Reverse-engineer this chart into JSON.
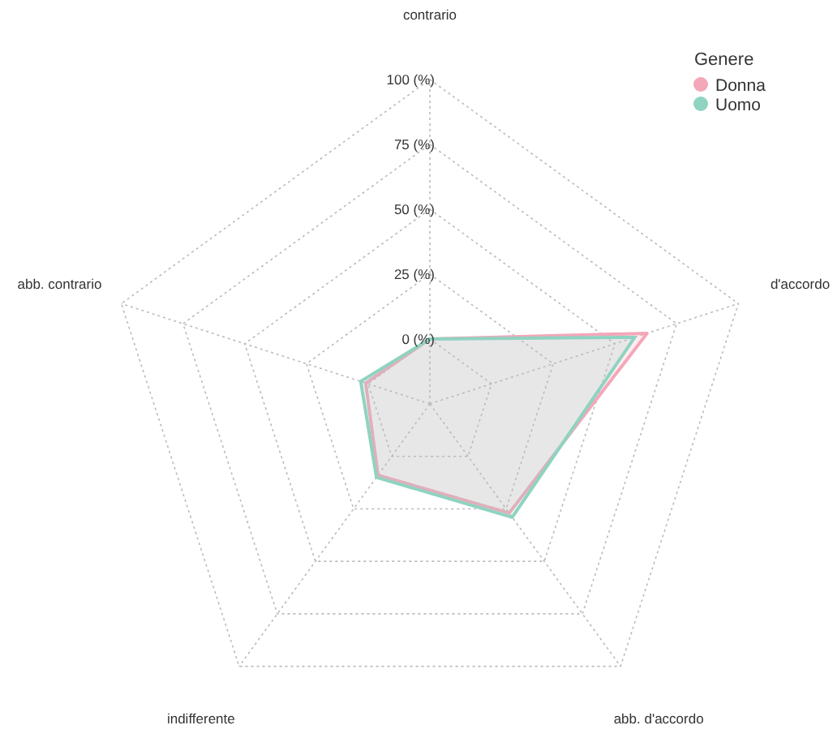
{
  "chart_data": {
    "type": "radar",
    "categories": [
      "contrario",
      "d'accordo",
      "abb. d'accordo",
      "indifferente",
      "abb. contrario"
    ],
    "series": [
      {
        "name": "Donna",
        "color": "#f4a7b9",
        "values": [
          0,
          63,
          27,
          9,
          1
        ]
      },
      {
        "name": "Uomo",
        "color": "#8fd3c1",
        "values": [
          0,
          58,
          29,
          10,
          3
        ]
      }
    ],
    "ylim": [
      -25,
      100
    ],
    "yticks": [
      {
        "value": 0,
        "label": "0 (%)"
      },
      {
        "value": 25,
        "label": "25 (%)"
      },
      {
        "value": 50,
        "label": "50 (%)"
      },
      {
        "value": 75,
        "label": "75 (%)"
      },
      {
        "value": 100,
        "label": "100 (%)"
      }
    ],
    "grid": true,
    "legend": "top right",
    "legend_title": "Genere"
  }
}
